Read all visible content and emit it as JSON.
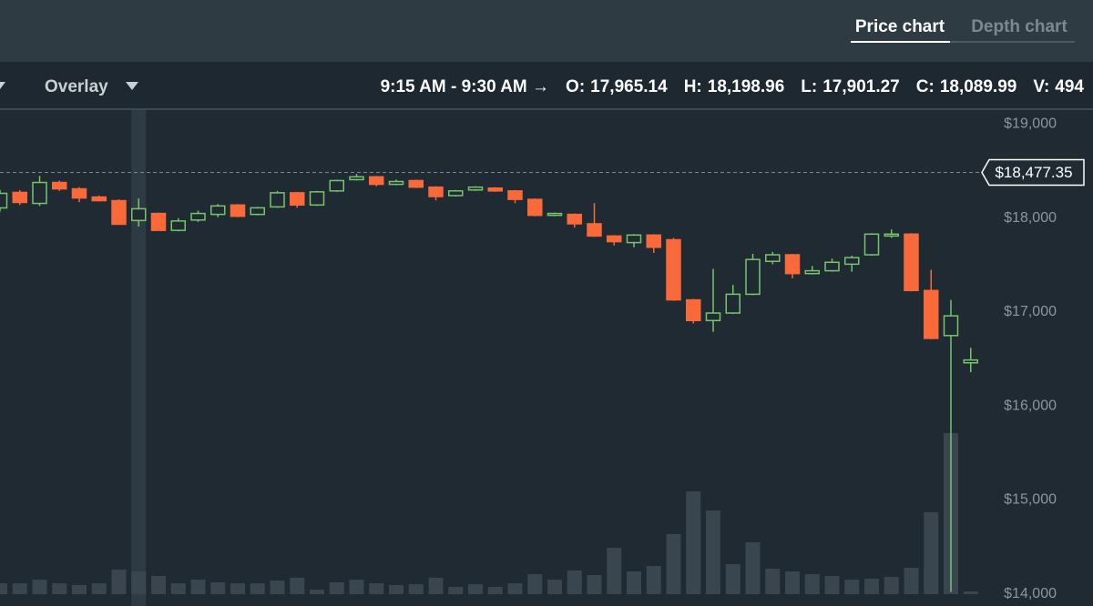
{
  "header": {
    "tab_price": "Price chart",
    "tab_depth": "Depth chart",
    "overlay": "Overlay",
    "range": "9:15 AM - 9:30 AM →",
    "open_label": "O:",
    "open": "17,965.14",
    "high_label": "H:",
    "high": "18,198.96",
    "low_label": "L:",
    "low": "17,901.27",
    "close_label": "C:",
    "close": "18,089.99",
    "volume_label": "V:",
    "volume": "494"
  },
  "chart_data": {
    "type": "candlestick",
    "ylim": [
      13900,
      19150
    ],
    "yticks": [
      {
        "value": 19000,
        "label": "$19,000"
      },
      {
        "value": 18000,
        "label": "$18,000"
      },
      {
        "value": 17000,
        "label": "$17,000"
      },
      {
        "value": 16000,
        "label": "$16,000"
      },
      {
        "value": 15000,
        "label": "$15,000"
      },
      {
        "value": 14000,
        "label": "$14,000"
      }
    ],
    "last_price": {
      "value": 18477.35,
      "label": "$18,477.35"
    },
    "up_color": "#77c46c",
    "down_color": "#f9693a",
    "volume_color": "#3a464f",
    "open": [
      18099,
      18264,
      18147,
      18370,
      18302,
      18215,
      18176,
      17965.14,
      18040,
      17860,
      17970,
      18030,
      18130,
      18030,
      18110,
      18260,
      18130,
      18280,
      18400,
      18430,
      18350,
      18390,
      18320,
      18230,
      18290,
      18310,
      18280,
      18190,
      18020,
      18030,
      17930,
      17800,
      17730,
      17810,
      17760,
      17120,
      16900,
      16980,
      17180,
      17530,
      17600,
      17400,
      17430,
      17500,
      17600,
      17800,
      17820,
      17220,
      16740,
      16450
    ],
    "high": [
      18290,
      18290,
      18440,
      18390,
      18320,
      18230,
      18190,
      18198.96,
      18050,
      17990,
      18070,
      18140,
      18140,
      18110,
      18280,
      18270,
      18280,
      18400,
      18460,
      18440,
      18400,
      18400,
      18330,
      18290,
      18330,
      18320,
      18290,
      18200,
      18050,
      18040,
      18150,
      17810,
      17820,
      17820,
      17780,
      17130,
      17450,
      17280,
      17610,
      17630,
      17610,
      17480,
      17560,
      17590,
      17830,
      17870,
      17830,
      17440,
      17120,
      16610
    ],
    "low": [
      18060,
      18130,
      18120,
      18280,
      18160,
      18170,
      17920,
      17901.27,
      17855,
      17850,
      17950,
      18000,
      18000,
      18020,
      18100,
      18100,
      18120,
      18270,
      18390,
      18330,
      18340,
      18310,
      18180,
      18220,
      18280,
      18270,
      18150,
      18010,
      18010,
      17890,
      17790,
      17700,
      17680,
      17620,
      17110,
      16870,
      16780,
      16970,
      17170,
      17500,
      17350,
      17390,
      17420,
      17420,
      17590,
      17780,
      17210,
      16700,
      14010,
      16350
    ],
    "close": [
      18254,
      18157,
      18370,
      18302,
      18205,
      18176,
      17925,
      18089.99,
      17860,
      17960,
      18040,
      18120,
      18010,
      18100,
      18260,
      18130,
      18270,
      18390,
      18430,
      18350,
      18380,
      18320,
      18220,
      18280,
      18320,
      18280,
      18190,
      18020,
      18040,
      17930,
      17800,
      17740,
      17810,
      17680,
      17120,
      16900,
      16980,
      17180,
      17550,
      17600,
      17400,
      17430,
      17520,
      17570,
      17820,
      17820,
      17220,
      16710,
      16950,
      16480
    ],
    "volume": [
      237,
      237,
      316,
      237,
      198,
      237,
      534,
      494,
      395,
      237,
      316,
      257,
      237,
      237,
      296,
      356,
      99,
      257,
      316,
      237,
      198,
      217,
      356,
      158,
      217,
      158,
      237,
      435,
      316,
      514,
      415,
      1008,
      494,
      613,
      1304,
      2233,
      1818,
      652,
      1126,
      553,
      494,
      435,
      395,
      316,
      336,
      375,
      573,
      1778,
      3498,
      59
    ]
  }
}
